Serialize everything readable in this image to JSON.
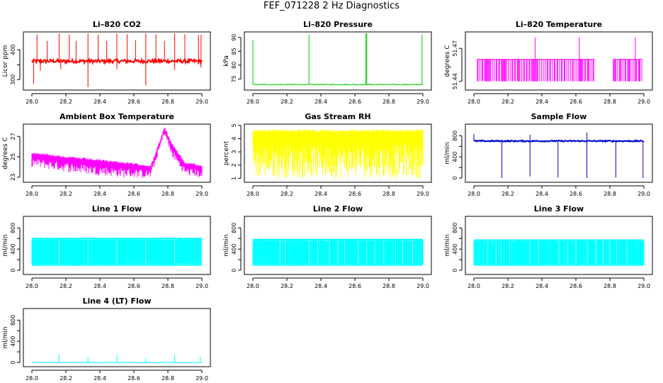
{
  "page": {
    "title": "FEF_071228  2 Hz Diagnostics"
  },
  "chart_data": [
    {
      "id": "co2",
      "type": "line",
      "title": "Li–820 CO2",
      "ylabel": "Licor ppm",
      "color": "#ff0000",
      "x_range": [
        28.0,
        29.0
      ],
      "xticks": [
        28.0,
        28.2,
        28.4,
        28.6,
        28.8,
        29.0
      ],
      "xtick_labels": [
        "28.0",
        "28.2",
        "28.4",
        "28.6",
        "28.8",
        "29.0"
      ],
      "ylim": [
        265,
        460
      ],
      "yticks": [
        300,
        350,
        400
      ],
      "ytick_labels": [
        "300",
        "",
        "400"
      ],
      "baseline": 362,
      "noise": 6,
      "spikes": [
        {
          "x": 28.03,
          "v": 452
        },
        {
          "x": 28.09,
          "v": 430
        },
        {
          "x": 28.16,
          "v": 455
        },
        {
          "x": 28.22,
          "v": 450
        },
        {
          "x": 28.26,
          "v": 430
        },
        {
          "x": 28.33,
          "v": 455
        },
        {
          "x": 28.39,
          "v": 450
        },
        {
          "x": 28.44,
          "v": 430
        },
        {
          "x": 28.5,
          "v": 455
        },
        {
          "x": 28.56,
          "v": 452
        },
        {
          "x": 28.61,
          "v": 432
        },
        {
          "x": 28.67,
          "v": 455
        },
        {
          "x": 28.73,
          "v": 452
        },
        {
          "x": 28.78,
          "v": 430
        },
        {
          "x": 28.84,
          "v": 455
        },
        {
          "x": 28.9,
          "v": 452
        },
        {
          "x": 28.98,
          "v": 450
        },
        {
          "x": 28.995,
          "v": 450
        }
      ],
      "dips": [
        {
          "x": 28.01,
          "v": 285
        },
        {
          "x": 28.05,
          "v": 330
        },
        {
          "x": 28.17,
          "v": 335
        },
        {
          "x": 28.33,
          "v": 275
        },
        {
          "x": 28.5,
          "v": 335
        },
        {
          "x": 28.67,
          "v": 280
        },
        {
          "x": 28.84,
          "v": 332
        },
        {
          "x": 28.995,
          "v": 340
        }
      ]
    },
    {
      "id": "pressure",
      "type": "line",
      "title": "Li–820 Pressure",
      "ylabel": "kPa",
      "color": "#00cc00",
      "x_range": [
        28.0,
        29.0
      ],
      "xticks": [
        28.0,
        28.2,
        28.4,
        28.6,
        28.8,
        29.0
      ],
      "xtick_labels": [
        "28.0",
        "28.2",
        "28.4",
        "28.6",
        "28.8",
        "29.0"
      ],
      "ylim": [
        71,
        92
      ],
      "yticks": [
        75,
        80,
        85,
        90
      ],
      "ytick_labels": [
        "75",
        "80",
        "85",
        "90"
      ],
      "baseline": 73,
      "noise": 0.2,
      "spikes": [
        {
          "x": 28.0,
          "v": 89
        },
        {
          "x": 28.33,
          "v": 91
        },
        {
          "x": 28.665,
          "v": 91.5
        },
        {
          "x": 28.67,
          "v": 91.5
        },
        {
          "x": 28.995,
          "v": 91
        }
      ],
      "dips": []
    },
    {
      "id": "temperature",
      "type": "line",
      "title": "Li–820 Temperature",
      "ylabel": "degrees C",
      "color": "#ff00ff",
      "x_range": [
        28.0,
        29.0
      ],
      "xticks": [
        28.0,
        28.2,
        28.4,
        28.6,
        28.8,
        29.0
      ],
      "xtick_labels": [
        "28.0",
        "28.2",
        "28.4",
        "28.6",
        "28.8",
        "29.0"
      ],
      "ylim": [
        51.432,
        51.485
      ],
      "yticks": [
        51.44,
        51.47
      ],
      "ytick_labels": [
        "51.44",
        "51.47"
      ],
      "low": 51.44,
      "high": 51.46,
      "band_segments": [
        [
          28.02,
          28.71
        ],
        [
          28.82,
          28.99
        ]
      ],
      "spikes": [
        {
          "x": 28.36,
          "v": 51.48
        },
        {
          "x": 28.62,
          "v": 51.48
        },
        {
          "x": 28.95,
          "v": 51.48
        }
      ]
    },
    {
      "id": "ambient",
      "type": "line",
      "title": "Ambient Box Temperature",
      "ylabel": "degrees C",
      "color": "#ff00ff",
      "x_range": [
        28.0,
        29.0
      ],
      "xticks": [
        28.0,
        28.2,
        28.4,
        28.6,
        28.8,
        29.0
      ],
      "xtick_labels": [
        "28.0",
        "28.2",
        "28.4",
        "28.6",
        "28.8",
        "29.0"
      ],
      "ylim": [
        22.5,
        28.2
      ],
      "yticks": [
        23,
        25,
        27
      ],
      "ytick_labels": [
        "23",
        "25",
        "27"
      ],
      "trend_x": [
        28.0,
        28.25,
        28.5,
        28.7,
        28.75,
        28.78,
        28.82,
        28.9,
        29.0
      ],
      "trend_hi": [
        25.5,
        25.0,
        24.6,
        24.2,
        26.5,
        28.0,
        26.5,
        24.5,
        24.2
      ],
      "trend_lo": [
        24.0,
        23.4,
        23.0,
        22.9,
        25.5,
        27.2,
        25.0,
        23.2,
        22.9
      ]
    },
    {
      "id": "rh",
      "type": "line",
      "title": "Gas Stream RH",
      "ylabel": "percent",
      "color": "#ffff00",
      "x_range": [
        28.0,
        29.0
      ],
      "xticks": [
        28.0,
        28.2,
        28.4,
        28.6,
        28.8,
        29.0
      ],
      "xtick_labels": [
        "28.0",
        "28.2",
        "28.4",
        "28.6",
        "28.8",
        "29.0"
      ],
      "ylim": [
        0.7,
        5.1
      ],
      "yticks": [
        1,
        2,
        3,
        4,
        5
      ],
      "ytick_labels": [
        "1",
        "2",
        "3",
        "4",
        "5"
      ],
      "max": 4.7,
      "min": 1.0
    },
    {
      "id": "sample",
      "type": "line",
      "title": "Sample Flow",
      "ylabel": "ml/min",
      "color": "#0000cc",
      "x_range": [
        28.0,
        29.0
      ],
      "xticks": [
        28.0,
        28.2,
        28.4,
        28.6,
        28.8,
        29.0
      ],
      "xtick_labels": [
        "28.0",
        "28.2",
        "28.4",
        "28.6",
        "28.8",
        "29.0"
      ],
      "ylim": [
        -80,
        1020
      ],
      "yticks": [
        0,
        200,
        400,
        600,
        800
      ],
      "ytick_labels": [
        "0",
        "",
        "400",
        "",
        "800"
      ],
      "baseline": 700,
      "noise": 12,
      "dips": [
        {
          "x": 28.165,
          "v": 0
        },
        {
          "x": 28.33,
          "v": 30
        },
        {
          "x": 28.495,
          "v": 10
        },
        {
          "x": 28.665,
          "v": 0
        },
        {
          "x": 28.835,
          "v": 10
        },
        {
          "x": 28.995,
          "v": 0
        }
      ],
      "spikes": [
        {
          "x": 28.0,
          "v": 830
        },
        {
          "x": 28.33,
          "v": 820
        },
        {
          "x": 28.665,
          "v": 860
        }
      ]
    },
    {
      "id": "line1",
      "type": "line",
      "title": "Line 1 Flow",
      "ylabel": "ml/min",
      "color": "#00ffff",
      "x_range": [
        28.0,
        29.0
      ],
      "xticks": [
        28.0,
        28.2,
        28.4,
        28.6,
        28.8,
        29.0
      ],
      "xtick_labels": [
        "28.0",
        "28.2",
        "28.4",
        "28.6",
        "28.8",
        "29.0"
      ],
      "ylim": [
        -80,
        1020
      ],
      "yticks": [
        0,
        200,
        400,
        600,
        800
      ],
      "ytick_labels": [
        "0",
        "",
        "400",
        "",
        "800"
      ],
      "max": 600,
      "min": 100,
      "gaps": [
        28.16,
        28.33,
        28.5,
        28.67,
        28.84
      ]
    },
    {
      "id": "line2",
      "type": "line",
      "title": "Line 2 Flow",
      "ylabel": "ml/min",
      "color": "#00ffff",
      "x_range": [
        28.0,
        29.0
      ],
      "xticks": [
        28.0,
        28.2,
        28.4,
        28.6,
        28.8,
        29.0
      ],
      "xtick_labels": [
        "28.0",
        "28.2",
        "28.4",
        "28.6",
        "28.8",
        "29.0"
      ],
      "ylim": [
        -80,
        1020
      ],
      "yticks": [
        0,
        200,
        400,
        600,
        800
      ],
      "ytick_labels": [
        "0",
        "",
        "400",
        "",
        "800"
      ],
      "max": 580,
      "min": 100,
      "gaps": [
        28.16,
        28.19,
        28.33,
        28.38,
        28.45,
        28.5,
        28.54,
        28.62,
        28.67,
        28.72,
        28.77,
        28.84,
        28.88,
        28.94
      ]
    },
    {
      "id": "line3",
      "type": "line",
      "title": "Line 3 Flow",
      "ylabel": "ml/min",
      "color": "#00ffff",
      "x_range": [
        28.0,
        29.0
      ],
      "xticks": [
        28.0,
        28.2,
        28.4,
        28.6,
        28.8,
        29.0
      ],
      "xtick_labels": [
        "28.0",
        "28.2",
        "28.4",
        "28.6",
        "28.8",
        "29.0"
      ],
      "ylim": [
        -80,
        1020
      ],
      "yticks": [
        0,
        200,
        400,
        600,
        800
      ],
      "ytick_labels": [
        "0",
        "",
        "400",
        "",
        "800"
      ],
      "max": 570,
      "min": 100,
      "gaps": [
        28.08,
        28.13,
        28.16,
        28.21,
        28.33,
        28.38,
        28.5,
        28.55,
        28.6,
        28.67,
        28.72,
        28.76,
        28.8,
        28.84,
        28.9
      ]
    },
    {
      "id": "line4",
      "type": "line",
      "title": "Line 4 (LT) Flow",
      "ylabel": "ml/min",
      "color": "#00ffff",
      "x_range": [
        28.0,
        29.0
      ],
      "xticks": [
        28.0,
        28.2,
        28.4,
        28.6,
        28.8,
        29.0
      ],
      "xtick_labels": [
        "28.0",
        "28.2",
        "28.4",
        "28.6",
        "28.8",
        "29.0"
      ],
      "ylim": [
        -80,
        1020
      ],
      "yticks": [
        0,
        200,
        400,
        600,
        800
      ],
      "ytick_labels": [
        "0",
        "",
        "400",
        "",
        "800"
      ],
      "baseline": 0,
      "noise": 3,
      "spikes": [
        {
          "x": 28.16,
          "v": 150
        },
        {
          "x": 28.33,
          "v": 90
        },
        {
          "x": 28.5,
          "v": 140
        },
        {
          "x": 28.67,
          "v": 80
        },
        {
          "x": 28.84,
          "v": 140
        },
        {
          "x": 28.99,
          "v": 100
        }
      ]
    }
  ]
}
